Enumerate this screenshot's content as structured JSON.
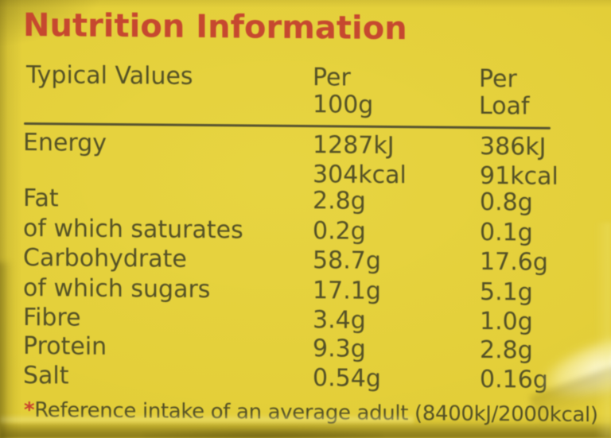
{
  "photo": {
    "description": "nutrition label printed on yellow bread-bag packaging",
    "background_color": "#e2cf3a",
    "title_color": "#c8432e",
    "text_color": "#545126"
  },
  "title": "Nutrition Information",
  "table": {
    "header": {
      "label": "Typical Values",
      "col1": [
        "Per",
        "100g"
      ],
      "col2": [
        "Per",
        "Loaf"
      ]
    },
    "rows": [
      {
        "label": "Energy",
        "per100": [
          "1287kJ",
          "304kcal"
        ],
        "perloaf": [
          "386kJ",
          "91kcal"
        ]
      },
      {
        "label": "Fat",
        "per100": [
          "2.8g"
        ],
        "perloaf": [
          "0.8g"
        ]
      },
      {
        "label": "of which saturates",
        "per100": [
          "0.2g"
        ],
        "perloaf": [
          "0.1g"
        ]
      },
      {
        "label": "Carbohydrate",
        "per100": [
          "58.7g"
        ],
        "perloaf": [
          "17.6g"
        ]
      },
      {
        "label": "of which sugars",
        "per100": [
          "17.1g"
        ],
        "perloaf": [
          "5.1g"
        ]
      },
      {
        "label": "Fibre",
        "per100": [
          "3.4g"
        ],
        "perloaf": [
          "1.0g"
        ]
      },
      {
        "label": "Protein",
        "per100": [
          "9.3g"
        ],
        "perloaf": [
          "2.8g"
        ]
      },
      {
        "label": "Salt",
        "per100": [
          "0.54g"
        ],
        "perloaf": [
          "0.16g"
        ]
      }
    ]
  },
  "footnote": {
    "marker": "*",
    "text": "Reference intake of an average adult (8400kJ/2000kcal)"
  }
}
